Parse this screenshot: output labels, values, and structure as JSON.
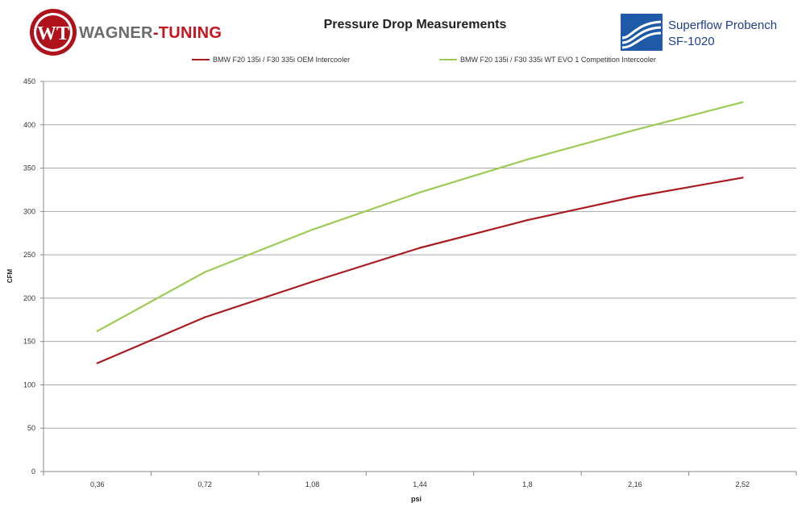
{
  "header": {
    "brand_left_text_1": "WAGNER",
    "brand_left_dash": "-",
    "brand_left_text_2": "TUNING",
    "brand_left_mark": "WT",
    "title": "Pressure Drop Measurements",
    "brand_right_line1": "Superflow Probench",
    "brand_right_line2": "SF-1020"
  },
  "colors": {
    "oem": "#a81c22",
    "evo": "#9ccc55",
    "grid": "#a8a8a8",
    "axis": "#888888",
    "brand_red": "#b0121b",
    "superflow_blue": "#1f5aa8"
  },
  "chart_data": {
    "type": "line",
    "title": "Pressure Drop Measurements",
    "xlabel": "psi",
    "ylabel": "CFM",
    "categories": [
      "0,36",
      "0,72",
      "1,08",
      "1,44",
      "1,8",
      "2,16",
      "2,52"
    ],
    "ylim": [
      0,
      450
    ],
    "yticks": [
      0,
      50,
      100,
      150,
      200,
      250,
      300,
      350,
      400,
      450
    ],
    "grid": true,
    "legend_position": "top",
    "series": [
      {
        "name": "BMW F20 135i / F30 335i OEM Intercooler",
        "color": "#a81c22",
        "values": [
          125,
          178,
          219,
          258,
          290,
          317,
          339
        ]
      },
      {
        "name": "BMW F20 135i / F30 335i WT EVO 1 Competition Intercooler",
        "color": "#9ccc55",
        "values": [
          162,
          230,
          279,
          322,
          360,
          394,
          426
        ]
      }
    ]
  }
}
